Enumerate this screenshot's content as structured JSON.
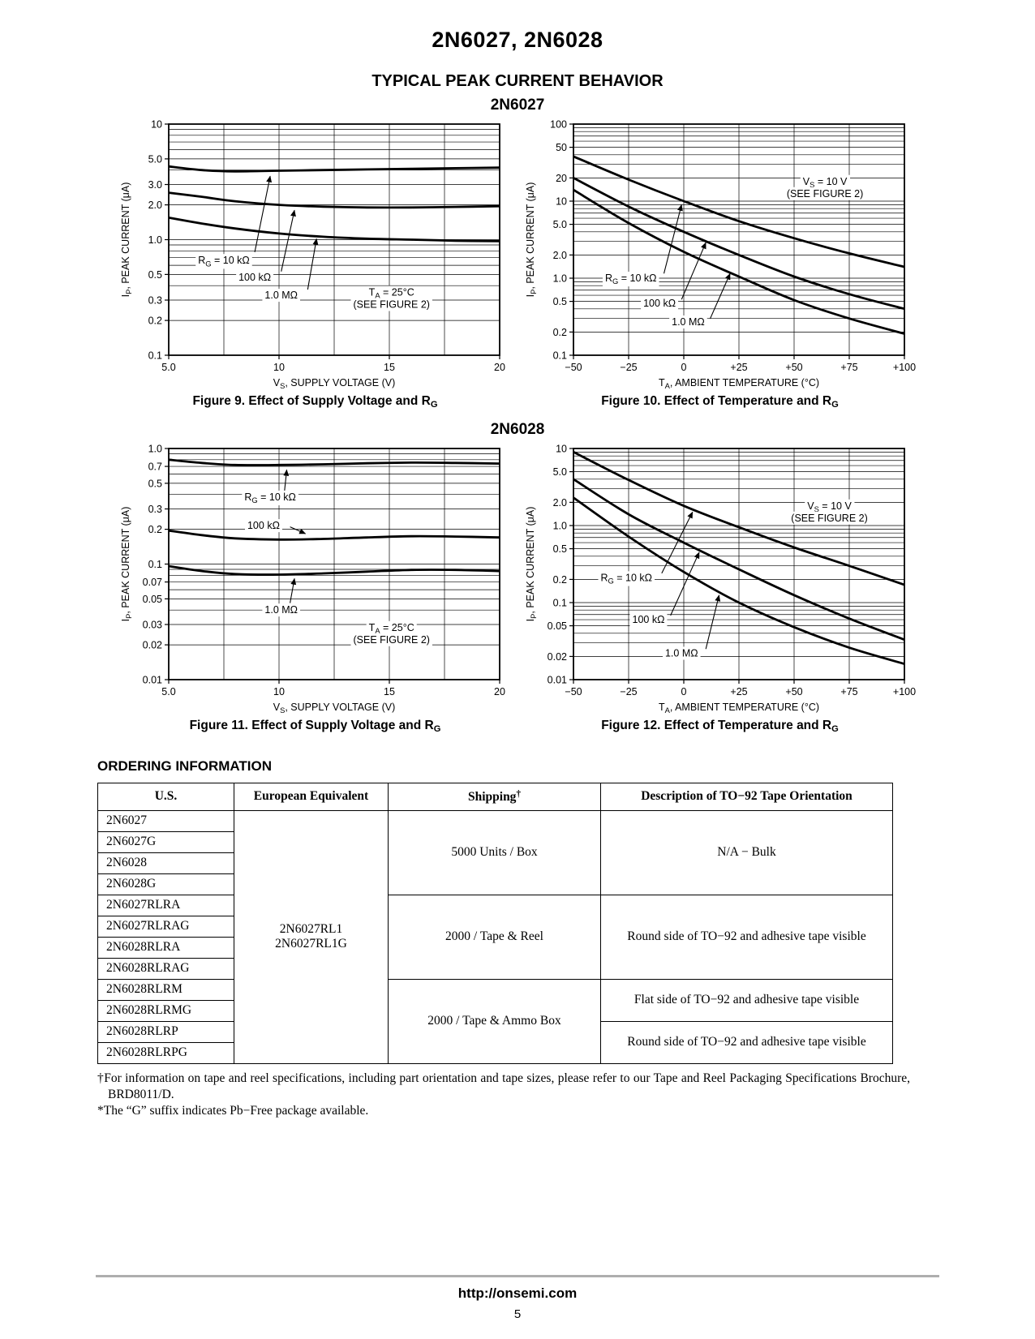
{
  "page": {
    "title": "2N6027, 2N6028",
    "behavior_heading": "TYPICAL PEAK CURRENT BEHAVIOR",
    "url": "http://onsemi.com",
    "page_number": "5",
    "colors": {
      "ink": "#000000",
      "footer_rule": "#aeaeae"
    }
  },
  "sections": [
    {
      "heading": "2N6027"
    },
    {
      "heading": "2N6028"
    }
  ],
  "chart_data": [
    {
      "id": "figure-9",
      "type": "line",
      "group": "2N6027",
      "caption": "Figure 9. Effect of Supply Voltage and R_{G}",
      "xlabel": "V_{S}, SUPPLY VOLTAGE (V)",
      "ylabel": "I_{P}, PEAK CURRENT (μA)",
      "xlim": [
        5,
        20
      ],
      "x_gridlines": [
        5,
        7.5,
        10,
        12.5,
        15,
        17.5,
        20
      ],
      "x_ticks": [
        {
          "v": 5,
          "label": "5.0"
        },
        {
          "v": 10,
          "label": "10"
        },
        {
          "v": 15,
          "label": "15"
        },
        {
          "v": 20,
          "label": "20"
        }
      ],
      "yscale": "log",
      "ylim": [
        0.1,
        10
      ],
      "y_ticks": [
        {
          "v": 10,
          "label": "10"
        },
        {
          "v": 5,
          "label": "5.0"
        },
        {
          "v": 3,
          "label": "3.0"
        },
        {
          "v": 2,
          "label": "2.0"
        },
        {
          "v": 1,
          "label": "1.0"
        },
        {
          "v": 0.5,
          "label": "0.5"
        },
        {
          "v": 0.3,
          "label": "0.3"
        },
        {
          "v": 0.2,
          "label": "0.2"
        },
        {
          "v": 0.1,
          "label": "0.1"
        }
      ],
      "grid": true,
      "series": [
        {
          "name": "R_{G} = 10 kΩ",
          "x": [
            5,
            6.5,
            8,
            10,
            12,
            14,
            16,
            18,
            20
          ],
          "y": [
            4.3,
            4.0,
            3.9,
            3.95,
            4.0,
            4.05,
            4.1,
            4.15,
            4.2
          ]
        },
        {
          "name": "100 kΩ",
          "x": [
            5,
            6.5,
            8,
            10,
            12,
            14,
            16,
            18,
            20
          ],
          "y": [
            2.55,
            2.35,
            2.15,
            2.0,
            1.93,
            1.9,
            1.9,
            1.92,
            1.95
          ]
        },
        {
          "name": "1.0 MΩ",
          "x": [
            5,
            6.5,
            8,
            10,
            12,
            14,
            16,
            18,
            20
          ],
          "y": [
            1.55,
            1.38,
            1.25,
            1.13,
            1.06,
            1.02,
            1.0,
            0.98,
            0.97
          ]
        }
      ],
      "annotations": [
        {
          "text": [
            "R_{G} = 10 kΩ"
          ],
          "x": 7.5,
          "y": 0.66,
          "arrow": {
            "from": [
              8.9,
              0.78
            ],
            "to": [
              9.6,
              3.55
            ]
          }
        },
        {
          "text": [
            "100 kΩ"
          ],
          "x": 8.9,
          "y": 0.47,
          "arrow": {
            "from": [
              10.1,
              0.53
            ],
            "to": [
              10.7,
              1.8
            ]
          }
        },
        {
          "text": [
            "1.0 MΩ"
          ],
          "x": 10.1,
          "y": 0.33,
          "arrow": {
            "from": [
              11.3,
              0.37
            ],
            "to": [
              11.7,
              1.02
            ]
          }
        },
        {
          "text": [
            "T_{A} = 25°C",
            "(SEE FIGURE 2)"
          ],
          "x": 15.1,
          "y": 0.31
        }
      ]
    },
    {
      "id": "figure-10",
      "type": "line",
      "group": "2N6027",
      "caption": "Figure 10. Effect of Temperature and R_{G}",
      "xlabel": "T_{A}, AMBIENT TEMPERATURE (°C)",
      "ylabel": "I_{P}, PEAK CURRENT (μA)",
      "xlim": [
        -50,
        100
      ],
      "x_gridlines": [
        -50,
        -25,
        0,
        25,
        50,
        75,
        100
      ],
      "x_ticks": [
        {
          "v": -50,
          "label": "−50"
        },
        {
          "v": -25,
          "label": "−25"
        },
        {
          "v": 0,
          "label": "0"
        },
        {
          "v": 25,
          "label": "+25"
        },
        {
          "v": 50,
          "label": "+50"
        },
        {
          "v": 75,
          "label": "+75"
        },
        {
          "v": 100,
          "label": "+100"
        }
      ],
      "yscale": "log",
      "ylim": [
        0.1,
        100
      ],
      "y_ticks": [
        {
          "v": 100,
          "label": "100"
        },
        {
          "v": 50,
          "label": "50"
        },
        {
          "v": 20,
          "label": "20"
        },
        {
          "v": 10,
          "label": "10"
        },
        {
          "v": 5,
          "label": "5.0"
        },
        {
          "v": 2,
          "label": "2.0"
        },
        {
          "v": 1,
          "label": "1.0"
        },
        {
          "v": 0.5,
          "label": "0.5"
        },
        {
          "v": 0.2,
          "label": "0.2"
        },
        {
          "v": 0.1,
          "label": "0.1"
        }
      ],
      "grid": true,
      "series": [
        {
          "name": "R_{G} = 10 kΩ",
          "x": [
            -50,
            -25,
            0,
            25,
            50,
            75,
            100
          ],
          "y": [
            38,
            19,
            10,
            5.5,
            3.3,
            2.1,
            1.4
          ]
        },
        {
          "name": "100 kΩ",
          "x": [
            -50,
            -25,
            0,
            25,
            50,
            75,
            100
          ],
          "y": [
            20,
            8.5,
            4.0,
            2.0,
            1.05,
            0.62,
            0.4
          ]
        },
        {
          "name": "1.0 MΩ",
          "x": [
            -50,
            -25,
            0,
            25,
            50,
            75,
            100
          ],
          "y": [
            14,
            5.2,
            2.2,
            1.05,
            0.52,
            0.3,
            0.19
          ]
        }
      ],
      "annotations": [
        {
          "text": [
            "V_{S} = 10 V",
            "(SEE FIGURE 2)"
          ],
          "x": 64,
          "y": 15
        },
        {
          "text": [
            "R_{G} = 10 kΩ"
          ],
          "x": -24,
          "y": 1.0,
          "arrow": {
            "from": [
              -9,
              1.15
            ],
            "to": [
              -1,
              9.0
            ]
          }
        },
        {
          "text": [
            "100 kΩ"
          ],
          "x": -11,
          "y": 0.47,
          "arrow": {
            "from": [
              -1,
              0.53
            ],
            "to": [
              10,
              2.9
            ]
          }
        },
        {
          "text": [
            "1.0 MΩ"
          ],
          "x": 2,
          "y": 0.27,
          "arrow": {
            "from": [
              12,
              0.3
            ],
            "to": [
              21,
              1.15
            ]
          }
        }
      ]
    },
    {
      "id": "figure-11",
      "type": "line",
      "group": "2N6028",
      "caption": "Figure 11. Effect of Supply Voltage and R_{G}",
      "xlabel": "V_{S}, SUPPLY VOLTAGE (V)",
      "ylabel": "I_{P}, PEAK CURRENT (μA)",
      "xlim": [
        5,
        20
      ],
      "x_gridlines": [
        5,
        7.5,
        10,
        12.5,
        15,
        17.5,
        20
      ],
      "x_ticks": [
        {
          "v": 5,
          "label": "5.0"
        },
        {
          "v": 10,
          "label": "10"
        },
        {
          "v": 15,
          "label": "15"
        },
        {
          "v": 20,
          "label": "20"
        }
      ],
      "yscale": "log",
      "ylim": [
        0.01,
        1.0
      ],
      "y_ticks": [
        {
          "v": 1.0,
          "label": "1.0"
        },
        {
          "v": 0.7,
          "label": "0.7"
        },
        {
          "v": 0.5,
          "label": "0.5"
        },
        {
          "v": 0.3,
          "label": "0.3"
        },
        {
          "v": 0.2,
          "label": "0.2"
        },
        {
          "v": 0.1,
          "label": "0.1"
        },
        {
          "v": 0.07,
          "label": "0.07"
        },
        {
          "v": 0.05,
          "label": "0.05"
        },
        {
          "v": 0.03,
          "label": "0.03"
        },
        {
          "v": 0.02,
          "label": "0.02"
        },
        {
          "v": 0.01,
          "label": "0.01"
        }
      ],
      "grid": true,
      "series": [
        {
          "name": "R_{G} = 10 kΩ",
          "x": [
            5,
            6.5,
            8,
            10,
            12,
            14,
            16,
            18,
            20
          ],
          "y": [
            0.8,
            0.75,
            0.72,
            0.72,
            0.73,
            0.745,
            0.755,
            0.75,
            0.74
          ]
        },
        {
          "name": "100 kΩ",
          "x": [
            5,
            6.5,
            8,
            10,
            12,
            14,
            16,
            18,
            20
          ],
          "y": [
            0.195,
            0.178,
            0.167,
            0.163,
            0.165,
            0.17,
            0.174,
            0.173,
            0.17
          ]
        },
        {
          "name": "1.0 MΩ",
          "x": [
            5,
            6.5,
            8,
            10,
            12,
            14,
            16,
            18,
            20
          ],
          "y": [
            0.096,
            0.087,
            0.082,
            0.081,
            0.083,
            0.086,
            0.089,
            0.089,
            0.087
          ]
        }
      ],
      "annotations": [
        {
          "text": [
            "R_{G} = 10 kΩ"
          ],
          "x": 9.6,
          "y": 0.38,
          "arrow": {
            "from": [
              10.25,
              0.43
            ],
            "to": [
              10.35,
              0.655
            ]
          }
        },
        {
          "text": [
            "100 kΩ"
          ],
          "x": 9.3,
          "y": 0.215,
          "arrow": {
            "from": [
              10.5,
              0.21
            ],
            "to": [
              11.2,
              0.183
            ]
          }
        },
        {
          "text": [
            "1.0 MΩ"
          ],
          "x": 10.1,
          "y": 0.04,
          "arrow": {
            "from": [
              10.5,
              0.046
            ],
            "to": [
              10.7,
              0.075
            ]
          }
        },
        {
          "text": [
            "T_{A} = 25°C",
            "(SEE FIGURE 2)"
          ],
          "x": 15.1,
          "y": 0.025
        }
      ]
    },
    {
      "id": "figure-12",
      "type": "line",
      "group": "2N6028",
      "caption": "Figure 12. Effect of Temperature and R_{G}",
      "xlabel": "T_{A}, AMBIENT TEMPERATURE (°C)",
      "ylabel": "I_{P}, PEAK CURRENT (μA)",
      "xlim": [
        -50,
        100
      ],
      "x_gridlines": [
        -50,
        -25,
        0,
        25,
        50,
        75,
        100
      ],
      "x_ticks": [
        {
          "v": -50,
          "label": "−50"
        },
        {
          "v": -25,
          "label": "−25"
        },
        {
          "v": 0,
          "label": "0"
        },
        {
          "v": 25,
          "label": "+25"
        },
        {
          "v": 50,
          "label": "+50"
        },
        {
          "v": 75,
          "label": "+75"
        },
        {
          "v": 100,
          "label": "+100"
        }
      ],
      "yscale": "log",
      "ylim": [
        0.01,
        10
      ],
      "y_ticks": [
        {
          "v": 10,
          "label": "10"
        },
        {
          "v": 5,
          "label": "5.0"
        },
        {
          "v": 2,
          "label": "2.0"
        },
        {
          "v": 1,
          "label": "1.0"
        },
        {
          "v": 0.5,
          "label": "0.5"
        },
        {
          "v": 0.2,
          "label": "0.2"
        },
        {
          "v": 0.1,
          "label": "0.1"
        },
        {
          "v": 0.05,
          "label": "0.05"
        },
        {
          "v": 0.02,
          "label": "0.02"
        },
        {
          "v": 0.01,
          "label": "0.01"
        }
      ],
      "grid": true,
      "series": [
        {
          "name": "R_{G} = 10 kΩ",
          "x": [
            -50,
            -25,
            0,
            25,
            50,
            75,
            100
          ],
          "y": [
            9.0,
            3.9,
            1.8,
            0.95,
            0.52,
            0.3,
            0.17
          ]
        },
        {
          "name": "100 kΩ",
          "x": [
            -50,
            -25,
            0,
            25,
            50,
            75,
            100
          ],
          "y": [
            4.0,
            1.4,
            0.6,
            0.27,
            0.125,
            0.062,
            0.033
          ]
        },
        {
          "name": "1.0 MΩ",
          "x": [
            -50,
            -25,
            0,
            25,
            50,
            75,
            100
          ],
          "y": [
            2.3,
            0.72,
            0.25,
            0.1,
            0.048,
            0.026,
            0.016
          ]
        }
      ],
      "annotations": [
        {
          "text": [
            "V_{S} = 10 V",
            "(SEE FIGURE 2)"
          ],
          "x": 66,
          "y": 1.5
        },
        {
          "text": [
            "R_{G} = 10 kΩ"
          ],
          "x": -26,
          "y": 0.21,
          "arrow": {
            "from": [
              -10,
              0.24
            ],
            "to": [
              4,
              1.5
            ]
          }
        },
        {
          "text": [
            "100 kΩ"
          ],
          "x": -16,
          "y": 0.06,
          "arrow": {
            "from": [
              -6,
              0.068
            ],
            "to": [
              7,
              0.45
            ]
          }
        },
        {
          "text": [
            "1.0 MΩ"
          ],
          "x": -1,
          "y": 0.022,
          "arrow": {
            "from": [
              10,
              0.025
            ],
            "to": [
              16,
              0.125
            ]
          }
        }
      ]
    }
  ],
  "ordering": {
    "heading": "ORDERING INFORMATION",
    "columns": [
      "U.S.",
      "European Equivalent",
      "Shipping^{†}",
      "Description of TO−92 Tape Orientation"
    ],
    "us_parts": [
      "2N6027",
      "2N6027G",
      "2N6028",
      "2N6028G",
      "2N6027RLRA",
      "2N6027RLRAG",
      "2N6028RLRA",
      "2N6028RLRAG",
      "2N6028RLRM",
      "2N6028RLRMG",
      "2N6028RLRP",
      "2N6028RLRPG"
    ],
    "european_equivalent": [
      "2N6027RL1",
      "2N6027RL1G"
    ],
    "shipping_groups": [
      {
        "label": "5000 Units / Box",
        "rows": 4
      },
      {
        "label": "2000 / Tape & Reel",
        "rows": 4
      },
      {
        "label": "2000 / Tape & Ammo Box",
        "rows": 4
      }
    ],
    "description_groups": [
      {
        "label": "N/A − Bulk",
        "rows": 4
      },
      {
        "label": "Round side of TO−92 and adhesive tape visible",
        "rows": 4
      },
      {
        "label": "Flat side of TO−92 and adhesive tape visible",
        "rows": 2
      },
      {
        "label": "Round side of TO−92 and adhesive tape visible",
        "rows": 2
      }
    ]
  },
  "footnotes": {
    "dagger": "†For information on tape and reel specifications, including part orientation and tape sizes, please refer to our Tape and Reel Packaging Specifications Brochure, BRD8011/D.",
    "star": "*The “G” suffix indicates Pb−Free package available."
  }
}
